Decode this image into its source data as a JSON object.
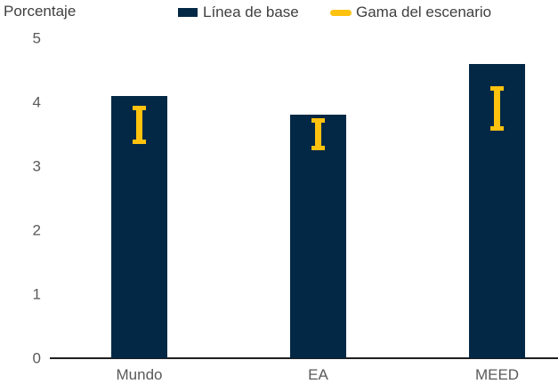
{
  "chart_data": {
    "type": "bar",
    "title": "",
    "ylabel": "Porcentaje",
    "xlabel": "",
    "categories": [
      "Mundo",
      "EA",
      "MEED"
    ],
    "series": [
      {
        "name": "Línea de base",
        "type": "bar",
        "color": "#032845",
        "values": [
          4.1,
          3.8,
          4.6
        ]
      },
      {
        "name": "Gama del escenario",
        "type": "error-range",
        "color": "#FFC20E",
        "low": [
          3.35,
          3.25,
          3.55
        ],
        "high": [
          3.95,
          3.75,
          4.25
        ]
      }
    ],
    "ylim": [
      0,
      5
    ],
    "yticks": [
      0,
      1,
      2,
      3,
      4,
      5
    ],
    "grid": false,
    "legend_position": "top",
    "axis_line_color": "#1f1f1f",
    "title_text_color": "#3f3f3f",
    "tick_text_color": "#595959",
    "background_color": "#ffffff"
  }
}
